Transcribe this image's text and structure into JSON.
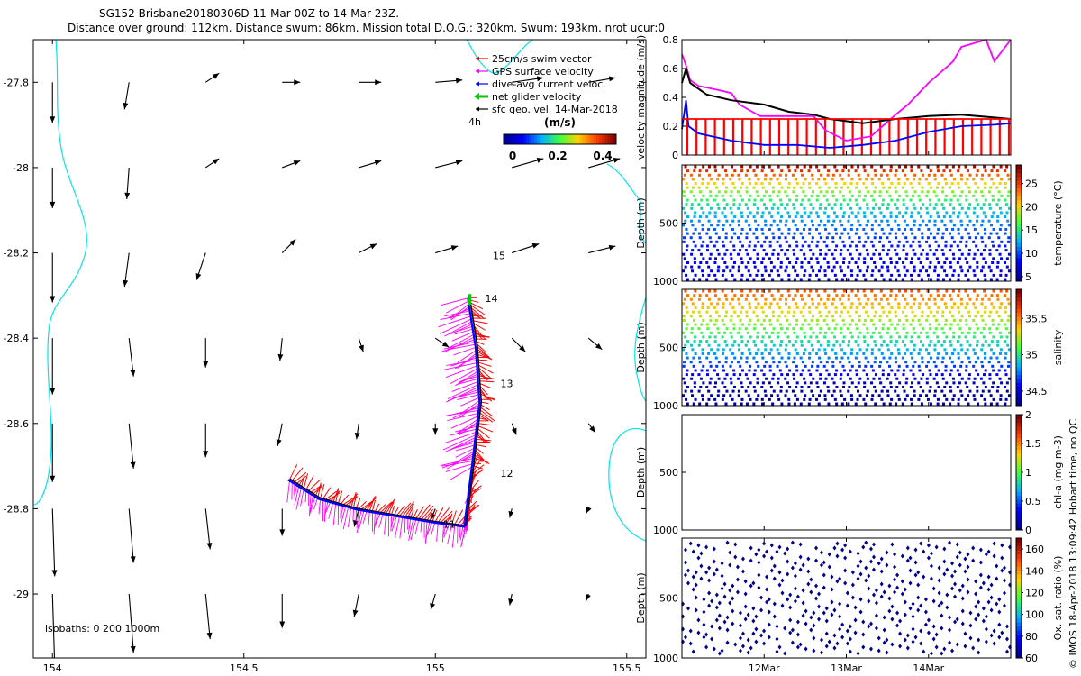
{
  "header": {
    "title": "SG152 Brisbane20180306D 11-Mar 00Z to 14-Mar 23Z.",
    "subtitle": "Distance over ground: 112km. Distance swum: 86km. Mission total D.O.G.: 320km. Swum: 193km. nrot ucur:0"
  },
  "credit": "© IMOS 18-Apr-2018 13:09:42 Hobart time, no QC",
  "colors": {
    "swim": "#ff0000",
    "gps": "#ff00ff",
    "dive_avg": "#0000ff",
    "net": "#00cc00",
    "geo": "#000000",
    "coast": "#00e5ee",
    "velocity_magnitude": "#ff00ff",
    "cmap": [
      "#00008f",
      "#0000ff",
      "#00b0ff",
      "#3fff3f",
      "#ffd000",
      "#ff4000",
      "#7f0000"
    ]
  },
  "chart_data": [
    {
      "type": "scatter",
      "name": "map",
      "xlim": [
        153.95,
        155.55
      ],
      "ylim": [
        -29.15,
        -27.7
      ],
      "xticks": [
        154,
        154.5,
        155,
        155.5
      ],
      "xtick_labels": [
        "154",
        "154.5",
        "155",
        "155.5"
      ],
      "yticks": [
        -27.8,
        -28,
        -28.2,
        -28.4,
        -28.6,
        -28.8,
        -29
      ],
      "ytick_labels": [
        "-27.8",
        "-28",
        "-28.2",
        "-28.4",
        "-28.6",
        "-28.8",
        "-29"
      ],
      "legend": [
        {
          "label": "25cm/s swim vector",
          "color": "#ff0000"
        },
        {
          "label": "GPS surface velocity",
          "color": "#ff00ff"
        },
        {
          "label": "dive-avg current veloc.",
          "color": "#0000ff"
        },
        {
          "label": "net glider velocity",
          "color": "#00cc00"
        },
        {
          "label": "sfc geo. vel. 14-Mar-2018",
          "color": "#000000"
        }
      ],
      "legend_placement": "top-right",
      "timestep_label": "4h",
      "colorbar": {
        "label": "(m/s)",
        "ticks": [
          0,
          0.2,
          0.4
        ],
        "tick_labels": [
          "0",
          "0.2",
          "0.4"
        ],
        "range": [
          0,
          0.5
        ]
      },
      "isobaths_label": "isobaths: 0   200  1000m",
      "day_labels": [
        {
          "text": "15",
          "lon": 155.15,
          "lat": -28.215
        },
        {
          "text": "14",
          "lon": 155.13,
          "lat": -28.315
        },
        {
          "text": "13",
          "lon": 155.17,
          "lat": -28.515
        },
        {
          "text": "12",
          "lon": 155.17,
          "lat": -28.725
        },
        {
          "text": "11",
          "lon": 155.02,
          "lat": -28.845
        }
      ],
      "track": [
        {
          "lon": 154.62,
          "lat": -28.73
        },
        {
          "lon": 154.7,
          "lat": -28.775
        },
        {
          "lon": 154.8,
          "lat": -28.8
        },
        {
          "lon": 154.9,
          "lat": -28.815
        },
        {
          "lon": 155.0,
          "lat": -28.83
        },
        {
          "lon": 155.08,
          "lat": -28.84
        },
        {
          "lon": 155.1,
          "lat": -28.7
        },
        {
          "lon": 155.12,
          "lat": -28.55
        },
        {
          "lon": 155.11,
          "lat": -28.42
        },
        {
          "lon": 155.095,
          "lat": -28.335
        },
        {
          "lon": 155.09,
          "lat": -28.305
        }
      ],
      "geo_grid_lons": [
        154.0,
        154.2,
        154.4,
        154.6,
        154.8,
        155.0,
        155.2,
        155.4
      ],
      "geo_grid_lats": [
        -27.8,
        -28.0,
        -28.2,
        -28.4,
        -28.6,
        -28.8,
        -29.0
      ],
      "geo_vectors": [
        {
          "lat": -27.8,
          "u": [
            0.0,
            -0.02,
            0.06,
            0.08,
            0.1,
            0.12,
            0.14,
            0.12
          ],
          "v": [
            -0.18,
            -0.12,
            0.04,
            0.0,
            0.0,
            0.01,
            0.02,
            0.02
          ]
        },
        {
          "lat": -28.0,
          "u": [
            0.0,
            -0.01,
            0.06,
            0.08,
            0.1,
            0.12,
            0.14,
            0.14
          ],
          "v": [
            -0.18,
            -0.14,
            0.04,
            0.03,
            0.03,
            0.03,
            0.04,
            0.04
          ]
        },
        {
          "lat": -28.2,
          "u": [
            0.0,
            -0.02,
            -0.04,
            0.06,
            0.08,
            0.1,
            0.12,
            0.12
          ],
          "v": [
            -0.22,
            -0.15,
            -0.12,
            0.06,
            0.04,
            0.03,
            0.04,
            0.03
          ]
        },
        {
          "lat": -28.4,
          "u": [
            0.0,
            0.02,
            0.0,
            -0.01,
            0.02,
            0.06,
            0.06,
            0.06
          ],
          "v": [
            -0.25,
            -0.17,
            -0.13,
            -0.1,
            -0.06,
            -0.04,
            -0.06,
            -0.05
          ]
        },
        {
          "lat": -28.6,
          "u": [
            0.0,
            0.02,
            0.0,
            -0.02,
            -0.01,
            0.0,
            0.02,
            0.03
          ],
          "v": [
            -0.26,
            -0.2,
            -0.15,
            -0.1,
            -0.07,
            -0.05,
            -0.05,
            -0.04
          ]
        },
        {
          "lat": -28.8,
          "u": [
            0.01,
            0.02,
            0.02,
            0.0,
            -0.02,
            -0.02,
            -0.01,
            -0.01
          ],
          "v": [
            -0.3,
            -0.24,
            -0.18,
            -0.12,
            -0.08,
            -0.05,
            -0.04,
            -0.02
          ]
        },
        {
          "lat": -29.0,
          "u": [
            0.01,
            0.02,
            0.02,
            0.0,
            -0.02,
            -0.02,
            -0.01,
            -0.01
          ],
          "v": [
            -0.32,
            -0.26,
            -0.2,
            -0.15,
            -0.1,
            -0.07,
            -0.05,
            -0.03
          ]
        }
      ]
    },
    {
      "type": "line",
      "name": "velocity-panel",
      "ylabel": "velocity magnitude (m/s)",
      "ylim": [
        0,
        0.8
      ],
      "yticks": [
        0,
        0.2,
        0.4,
        0.6,
        0.8
      ],
      "ytick_labels": [
        "0",
        "0.2",
        "0.4",
        "0.6",
        "0.8"
      ],
      "xlim": [
        0,
        4
      ],
      "xticks": [
        1,
        2,
        3
      ],
      "xtick_labels": [
        "12Mar",
        "13Mar",
        "14Mar"
      ],
      "series": [
        {
          "color": "#ff00ff",
          "x": [
            0.0,
            0.05,
            0.1,
            0.2,
            0.45,
            0.6,
            0.7,
            0.95,
            1.05,
            1.6,
            1.75,
            2.0,
            2.3,
            2.6,
            2.75,
            3.0,
            3.3,
            3.4,
            3.7,
            3.8,
            4.0
          ],
          "y": [
            0.7,
            0.62,
            0.52,
            0.48,
            0.45,
            0.43,
            0.35,
            0.27,
            0.27,
            0.27,
            0.17,
            0.1,
            0.13,
            0.28,
            0.35,
            0.5,
            0.65,
            0.75,
            0.8,
            0.65,
            0.8
          ]
        },
        {
          "color": "#000000",
          "x": [
            0.0,
            0.05,
            0.1,
            0.3,
            0.6,
            1.0,
            1.3,
            1.6,
            1.8,
            2.2,
            2.6,
            3.0,
            3.4,
            3.8,
            4.0
          ],
          "y": [
            0.5,
            0.6,
            0.5,
            0.42,
            0.38,
            0.35,
            0.3,
            0.28,
            0.25,
            0.22,
            0.25,
            0.27,
            0.28,
            0.26,
            0.25
          ]
        },
        {
          "color": "#0000ff",
          "x": [
            0.0,
            0.05,
            0.08,
            0.2,
            0.6,
            1.0,
            1.4,
            1.8,
            2.2,
            2.6,
            3.0,
            3.4,
            3.8,
            4.0
          ],
          "y": [
            0.18,
            0.38,
            0.2,
            0.15,
            0.1,
            0.07,
            0.07,
            0.05,
            0.07,
            0.1,
            0.16,
            0.2,
            0.21,
            0.22
          ]
        },
        {
          "color": "#ff0000",
          "x": [
            0.0,
            4.0
          ],
          "y": [
            0.25,
            0.25
          ]
        }
      ]
    },
    {
      "type": "heatmap",
      "name": "temperature-panel",
      "ylabel": "Depth (m)",
      "ylim": [
        1000,
        0
      ],
      "yticks": [
        500,
        1000
      ],
      "ytick_labels": [
        "500",
        "1000"
      ],
      "colorbar_label": "temperature (°C)",
      "colorbar_range": [
        4,
        29
      ],
      "colorbar_ticks": [
        5,
        10,
        15,
        20,
        25
      ],
      "colorbar_tick_labels": [
        "5",
        "10",
        "15",
        "20",
        "25"
      ],
      "profiles": 42,
      "surface_value": 28,
      "bottom_value": 5
    },
    {
      "type": "heatmap",
      "name": "salinity-panel",
      "ylabel": "Depth (m)",
      "ylim": [
        1000,
        0
      ],
      "yticks": [
        500,
        1000
      ],
      "ytick_labels": [
        "500",
        "1000"
      ],
      "colorbar_label": "salinity",
      "colorbar_range": [
        34.3,
        35.9
      ],
      "colorbar_ticks": [
        34.5,
        35,
        35.5
      ],
      "colorbar_tick_labels": [
        "34.5",
        "35",
        "35.5"
      ],
      "profiles": 42,
      "surface_value": 35.6,
      "bottom_value": 34.35
    },
    {
      "type": "heatmap",
      "name": "chla-panel",
      "ylabel": "Depth (m)",
      "ylim": [
        1000,
        0
      ],
      "yticks": [
        500,
        1000
      ],
      "ytick_labels": [
        "500",
        "1000"
      ],
      "colorbar_label": "chl-a (mg m-3)",
      "colorbar_range": [
        0,
        2
      ],
      "colorbar_ticks": [
        0,
        0.5,
        1,
        1.5,
        2
      ],
      "colorbar_tick_labels": [
        "0",
        "0.5",
        "1",
        "1.5",
        "2"
      ],
      "profiles": 0
    },
    {
      "type": "scatter",
      "name": "oxygen-panel",
      "ylabel": "Depth (m)",
      "ylim": [
        1000,
        0
      ],
      "yticks": [
        500,
        1000
      ],
      "ytick_labels": [
        "500",
        "1000"
      ],
      "colorbar_label": "Ox. sat. ratio (%)",
      "colorbar_range": [
        60,
        170
      ],
      "colorbar_ticks": [
        60,
        80,
        100,
        120,
        140,
        160
      ],
      "colorbar_tick_labels": [
        "60",
        "80",
        "100",
        "120",
        "140",
        "160"
      ],
      "profiles": 42,
      "value": 60
    }
  ]
}
